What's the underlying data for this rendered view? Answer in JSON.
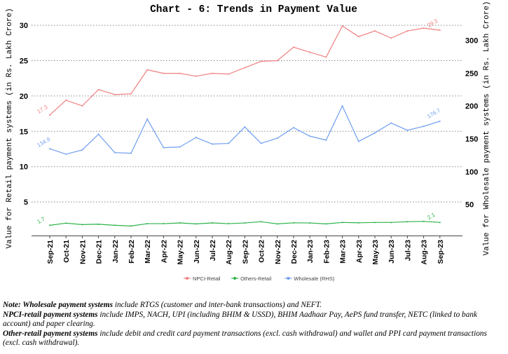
{
  "chart_data": {
    "type": "line",
    "title": "Chart - 6: Trends in Payment Value",
    "ylabel": "Value for Retail payment systems (in Rs. Lakh Crore)",
    "y2label": "Value for Wholesale payment systems (in Rs. Lakh Crore)",
    "ylim": [
      0,
      31.5
    ],
    "y2lim": [
      0,
      339
    ],
    "yticks": [
      5,
      10,
      15,
      20,
      25,
      30
    ],
    "y2ticks": [
      50,
      100,
      150,
      200,
      250,
      300
    ],
    "grid": true,
    "legend_position": "bottom",
    "categories": [
      "Sep-21",
      "Oct-21",
      "Nov-21",
      "Dec-21",
      "Jan-22",
      "Feb-22",
      "Mar-22",
      "Apr-22",
      "May-22",
      "Jun-22",
      "Jul-22",
      "Aug-22",
      "Sep-22",
      "Oct-22",
      "Nov-22",
      "Dec-22",
      "Jan-23",
      "Feb-23",
      "Mar-23",
      "Apr-23",
      "May-23",
      "Jun-23",
      "Jul-23",
      "Aug-23",
      "Sep-23"
    ],
    "series": [
      {
        "name": "NPCI-Retail",
        "axis": "left",
        "color": "#f08080",
        "values": [
          17.3,
          19.4,
          18.6,
          20.9,
          20.2,
          20.3,
          23.7,
          23.2,
          23.2,
          22.8,
          23.2,
          23.1,
          24.0,
          24.9,
          25.0,
          26.9,
          26.2,
          25.5,
          29.9,
          28.4,
          29.2,
          28.2,
          29.2,
          29.6,
          29.3
        ],
        "labels": {
          "first": "17.3",
          "last": "29.3"
        }
      },
      {
        "name": "Others-Retail",
        "axis": "left",
        "color": "#2db34a",
        "values": [
          1.7,
          2.0,
          1.8,
          1.85,
          1.7,
          1.6,
          1.93,
          1.93,
          2.03,
          1.9,
          2.03,
          1.93,
          2.03,
          2.2,
          1.9,
          2.05,
          2.03,
          1.9,
          2.1,
          2.05,
          2.1,
          2.1,
          2.2,
          2.25,
          2.1
        ],
        "labels": {
          "first": "1.7",
          "last": "2.1"
        }
      },
      {
        "name": "Wholesale (RHS)",
        "axis": "right",
        "color": "#6f9ef0",
        "values": [
          134.9,
          126.6,
          133,
          157,
          129,
          128,
          180,
          136.5,
          137.5,
          152,
          142,
          143,
          168,
          143,
          151,
          167,
          154,
          148,
          200,
          146,
          159,
          174,
          163,
          169,
          176.7
        ],
        "labels": {
          "first": "134.9",
          "last": "176.7"
        }
      }
    ]
  },
  "notes": {
    "line1_bold": "Note: Wholesale payment systems",
    "line1_rest": " include RTGS (customer and inter-bank transactions) and NEFT.",
    "line2_bold": "NPCI-retail payment systems",
    "line2_rest": " include IMPS, NACH, UPI (including BHIM & USSD), BHIM Aadhaar Pay, AePS fund transfer, NETC (linked to bank account) and paper clearing.",
    "line3_bold": "Other-retail payment systems",
    "line3_rest": " include debit and credit card payment transactions (excl. cash withdrawal) and wallet and PPI card payment transactions (excl. cash withdrawal)."
  }
}
